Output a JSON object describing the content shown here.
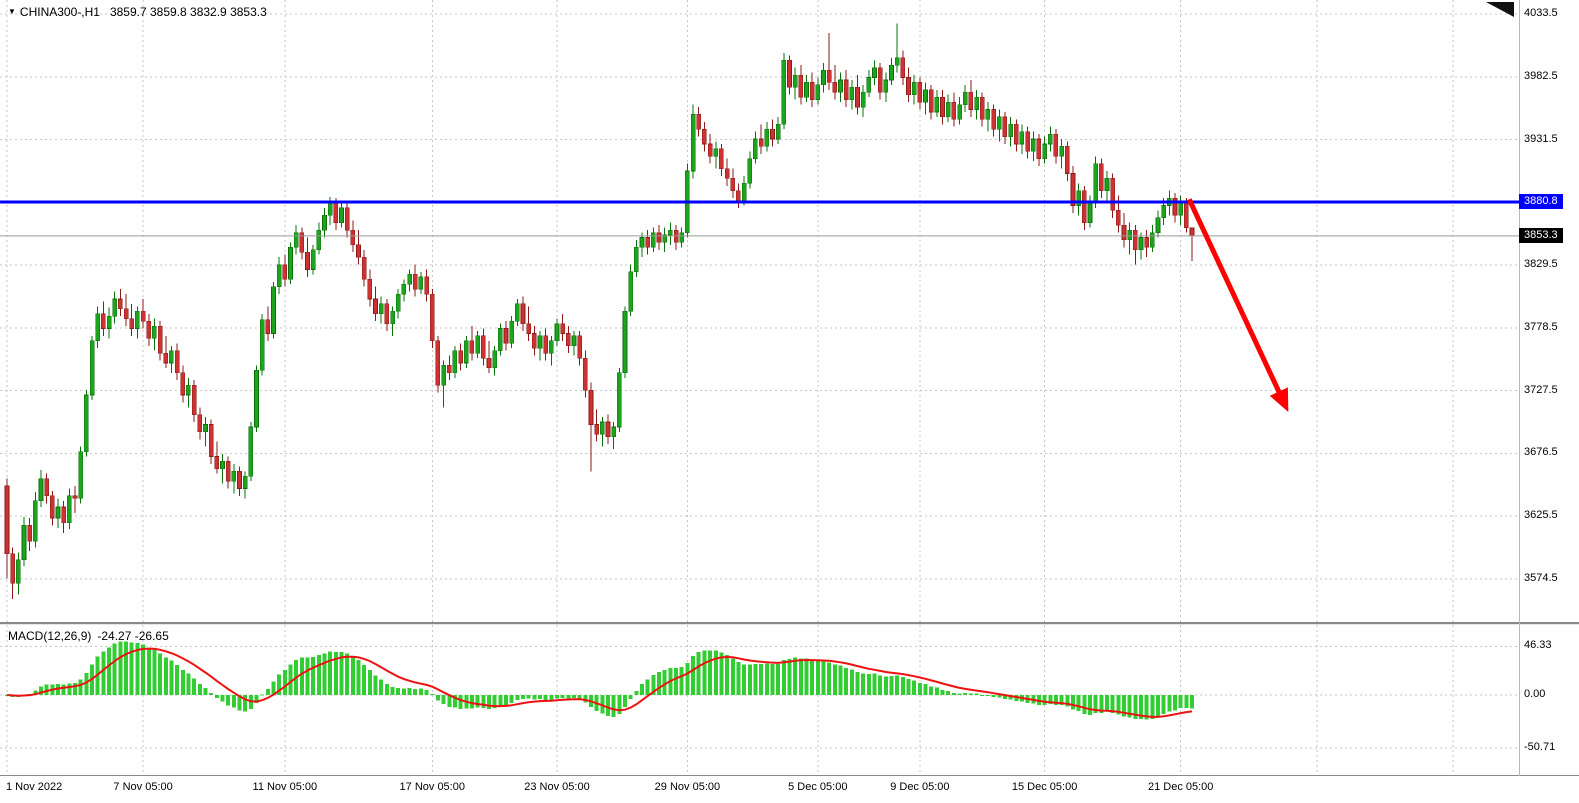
{
  "header": {
    "symbol": "CHINA300-,H1",
    "ohlc": "3859.7 3859.8 3832.9 3853.3"
  },
  "chart_data": {
    "type": "candlestick",
    "title": "CHINA300-,H1",
    "timeframe": "H1",
    "current_bar": {
      "open": 3859.7,
      "high": 3859.8,
      "low": 3832.9,
      "close": 3853.3
    },
    "price_axis": {
      "tick_labels": [
        "4033.5",
        "3982.5",
        "3931.5",
        "3829.5",
        "3778.5",
        "3727.5",
        "3676.5",
        "3625.5",
        "3574.5"
      ]
    },
    "resistance_line": {
      "price": 3880.8,
      "label": "3880.8",
      "color": "#0000FF"
    },
    "current_price_line": {
      "price": 3853.3,
      "label": "3853.3",
      "badge_bg": "#000000",
      "line_color": "#9a9a9a"
    },
    "time_axis": {
      "ticks": [
        {
          "bar": 0,
          "label": "1 Nov 2022"
        },
        {
          "bar": 24,
          "label": "7 Nov 05:00"
        },
        {
          "bar": 49,
          "label": "11 Nov 05:00"
        },
        {
          "bar": 75,
          "label": "17 Nov 05:00"
        },
        {
          "bar": 97,
          "label": "23 Nov 05:00"
        },
        {
          "bar": 120,
          "label": "29 Nov 05:00"
        },
        {
          "bar": 143,
          "label": "5 Dec 05:00"
        },
        {
          "bar": 161,
          "label": "9 Dec 05:00"
        },
        {
          "bar": 183,
          "label": "15 Dec 05:00"
        },
        {
          "bar": 207,
          "label": "21 Dec 05:00"
        }
      ],
      "unlabeled_grid_bars": [
        231,
        255
      ]
    },
    "colors": {
      "bull": "#1CA51C",
      "bull_border": "#0A700A",
      "bear": "#CC3232",
      "bear_border": "#8B1A1A",
      "grid": "#C6C6C6",
      "splitter": "#8a8a8a"
    },
    "annotation_arrow": {
      "from_bar": 208.5,
      "from_price": 3883,
      "to_bar": 225.5,
      "to_price": 3715,
      "color": "#FF0000",
      "stroke_width": 5
    },
    "indicator": {
      "name": "MACD(12,26,9)",
      "values_label": "-24.27 -26.65",
      "fast": 12,
      "slow": 26,
      "signal": 9,
      "last_macd": -24.27,
      "last_signal": -26.65,
      "axis_ticks": [
        {
          "value": 46.33,
          "label": "46.33"
        },
        {
          "value": 0,
          "label": "0.00"
        },
        {
          "value": -50.71,
          "label": "-50.71"
        }
      ],
      "histogram_color": "#32CD32",
      "signal_color": "#EE1111"
    },
    "candles": [
      [
        3650,
        3656,
        3575,
        3595
      ],
      [
        3595,
        3600,
        3558,
        3571
      ],
      [
        3571,
        3596,
        3562,
        3590
      ],
      [
        3590,
        3625,
        3585,
        3618
      ],
      [
        3618,
        3624,
        3597,
        3605
      ],
      [
        3605,
        3645,
        3600,
        3638
      ],
      [
        3638,
        3663,
        3633,
        3656
      ],
      [
        3656,
        3660,
        3636,
        3642
      ],
      [
        3642,
        3646,
        3618,
        3624
      ],
      [
        3624,
        3640,
        3616,
        3633
      ],
      [
        3633,
        3638,
        3612,
        3620
      ],
      [
        3620,
        3648,
        3615,
        3642
      ],
      [
        3642,
        3650,
        3628,
        3640
      ],
      [
        3640,
        3682,
        3636,
        3678
      ],
      [
        3678,
        3728,
        3674,
        3724
      ],
      [
        3724,
        3772,
        3720,
        3768
      ],
      [
        3768,
        3796,
        3762,
        3790
      ],
      [
        3790,
        3800,
        3772,
        3778
      ],
      [
        3778,
        3795,
        3770,
        3788
      ],
      [
        3788,
        3808,
        3782,
        3802
      ],
      [
        3802,
        3810,
        3788,
        3794
      ],
      [
        3794,
        3806,
        3780,
        3786
      ],
      [
        3786,
        3798,
        3772,
        3778
      ],
      [
        3778,
        3796,
        3770,
        3792
      ],
      [
        3792,
        3802,
        3778,
        3784
      ],
      [
        3784,
        3790,
        3764,
        3770
      ],
      [
        3770,
        3786,
        3760,
        3780
      ],
      [
        3780,
        3784,
        3752,
        3758
      ],
      [
        3758,
        3772,
        3746,
        3750
      ],
      [
        3750,
        3764,
        3742,
        3760
      ],
      [
        3760,
        3766,
        3736,
        3742
      ],
      [
        3742,
        3748,
        3718,
        3724
      ],
      [
        3724,
        3738,
        3714,
        3732
      ],
      [
        3732,
        3736,
        3702,
        3708
      ],
      [
        3708,
        3714,
        3688,
        3694
      ],
      [
        3694,
        3706,
        3682,
        3700
      ],
      [
        3700,
        3704,
        3668,
        3674
      ],
      [
        3674,
        3686,
        3660,
        3664
      ],
      [
        3664,
        3676,
        3652,
        3670
      ],
      [
        3670,
        3674,
        3648,
        3654
      ],
      [
        3654,
        3668,
        3644,
        3662
      ],
      [
        3662,
        3666,
        3642,
        3648
      ],
      [
        3648,
        3662,
        3640,
        3658
      ],
      [
        3658,
        3702,
        3654,
        3698
      ],
      [
        3698,
        3748,
        3694,
        3744
      ],
      [
        3744,
        3790,
        3740,
        3785
      ],
      [
        3785,
        3796,
        3768,
        3774
      ],
      [
        3774,
        3816,
        3770,
        3812
      ],
      [
        3812,
        3836,
        3806,
        3830
      ],
      [
        3830,
        3838,
        3812,
        3818
      ],
      [
        3818,
        3848,
        3814,
        3844
      ],
      [
        3844,
        3862,
        3838,
        3856
      ],
      [
        3856,
        3860,
        3834,
        3840
      ],
      [
        3840,
        3852,
        3820,
        3826
      ],
      [
        3826,
        3846,
        3822,
        3842
      ],
      [
        3842,
        3864,
        3838,
        3858
      ],
      [
        3858,
        3876,
        3852,
        3870
      ],
      [
        3870,
        3885,
        3862,
        3880
      ],
      [
        3880,
        3884,
        3858,
        3864
      ],
      [
        3864,
        3882,
        3860,
        3876
      ],
      [
        3876,
        3880,
        3852,
        3858
      ],
      [
        3858,
        3866,
        3840,
        3846
      ],
      [
        3846,
        3858,
        3830,
        3836
      ],
      [
        3836,
        3842,
        3812,
        3818
      ],
      [
        3818,
        3826,
        3796,
        3802
      ],
      [
        3802,
        3812,
        3784,
        3790
      ],
      [
        3790,
        3804,
        3782,
        3798
      ],
      [
        3798,
        3802,
        3776,
        3782
      ],
      [
        3782,
        3796,
        3772,
        3792
      ],
      [
        3792,
        3810,
        3786,
        3806
      ],
      [
        3806,
        3818,
        3800,
        3814
      ],
      [
        3814,
        3826,
        3808,
        3822
      ],
      [
        3822,
        3830,
        3804,
        3810
      ],
      [
        3810,
        3824,
        3806,
        3820
      ],
      [
        3820,
        3826,
        3800,
        3806
      ],
      [
        3806,
        3810,
        3762,
        3768
      ],
      [
        3768,
        3772,
        3726,
        3732
      ],
      [
        3732,
        3752,
        3714,
        3748
      ],
      [
        3748,
        3756,
        3736,
        3742
      ],
      [
        3742,
        3764,
        3738,
        3760
      ],
      [
        3760,
        3766,
        3744,
        3750
      ],
      [
        3750,
        3772,
        3746,
        3768
      ],
      [
        3768,
        3780,
        3752,
        3758
      ],
      [
        3758,
        3776,
        3754,
        3772
      ],
      [
        3772,
        3778,
        3748,
        3754
      ],
      [
        3754,
        3768,
        3742,
        3746
      ],
      [
        3746,
        3764,
        3740,
        3760
      ],
      [
        3760,
        3782,
        3756,
        3778
      ],
      [
        3778,
        3784,
        3760,
        3766
      ],
      [
        3766,
        3788,
        3762,
        3784
      ],
      [
        3784,
        3802,
        3780,
        3798
      ],
      [
        3798,
        3804,
        3776,
        3782
      ],
      [
        3782,
        3796,
        3768,
        3774
      ],
      [
        3774,
        3780,
        3756,
        3762
      ],
      [
        3762,
        3776,
        3752,
        3772
      ],
      [
        3772,
        3778,
        3752,
        3758
      ],
      [
        3758,
        3772,
        3748,
        3768
      ],
      [
        3768,
        3786,
        3764,
        3782
      ],
      [
        3782,
        3790,
        3768,
        3774
      ],
      [
        3774,
        3780,
        3758,
        3764
      ],
      [
        3764,
        3776,
        3756,
        3772
      ],
      [
        3772,
        3776,
        3748,
        3754
      ],
      [
        3754,
        3760,
        3722,
        3728
      ],
      [
        3728,
        3734,
        3662,
        3700
      ],
      [
        3700,
        3712,
        3686,
        3692
      ],
      [
        3692,
        3706,
        3682,
        3702
      ],
      [
        3702,
        3708,
        3684,
        3690
      ],
      [
        3690,
        3702,
        3680,
        3698
      ],
      [
        3698,
        3746,
        3694,
        3742
      ],
      [
        3742,
        3796,
        3738,
        3792
      ],
      [
        3792,
        3830,
        3788,
        3824
      ],
      [
        3824,
        3850,
        3820,
        3844
      ],
      [
        3844,
        3856,
        3836,
        3852
      ],
      [
        3852,
        3858,
        3838,
        3844
      ],
      [
        3844,
        3860,
        3840,
        3856
      ],
      [
        3856,
        3862,
        3842,
        3848
      ],
      [
        3848,
        3860,
        3840,
        3854
      ],
      [
        3854,
        3864,
        3846,
        3858
      ],
      [
        3858,
        3862,
        3842,
        3848
      ],
      [
        3848,
        3860,
        3844,
        3856
      ],
      [
        3856,
        3912,
        3852,
        3906
      ],
      [
        3906,
        3960,
        3900,
        3952
      ],
      [
        3952,
        3958,
        3934,
        3940
      ],
      [
        3940,
        3946,
        3922,
        3928
      ],
      [
        3928,
        3936,
        3912,
        3918
      ],
      [
        3918,
        3930,
        3908,
        3924
      ],
      [
        3924,
        3928,
        3902,
        3908
      ],
      [
        3908,
        3916,
        3894,
        3900
      ],
      [
        3900,
        3908,
        3884,
        3890
      ],
      [
        3890,
        3896,
        3876,
        3882
      ],
      [
        3882,
        3902,
        3878,
        3896
      ],
      [
        3896,
        3922,
        3892,
        3916
      ],
      [
        3916,
        3938,
        3912,
        3932
      ],
      [
        3932,
        3944,
        3920,
        3926
      ],
      [
        3926,
        3946,
        3922,
        3940
      ],
      [
        3940,
        3948,
        3926,
        3932
      ],
      [
        3932,
        3950,
        3928,
        3944
      ],
      [
        3944,
        4002,
        3940,
        3996
      ],
      [
        3996,
        4000,
        3968,
        3974
      ],
      [
        3974,
        3990,
        3964,
        3984
      ],
      [
        3984,
        3992,
        3960,
        3966
      ],
      [
        3966,
        3984,
        3962,
        3978
      ],
      [
        3978,
        3986,
        3958,
        3964
      ],
      [
        3964,
        3982,
        3960,
        3976
      ],
      [
        3976,
        3994,
        3970,
        3988
      ],
      [
        3988,
        4018,
        3972,
        3978
      ],
      [
        3978,
        3992,
        3964,
        3970
      ],
      [
        3970,
        3986,
        3962,
        3980
      ],
      [
        3980,
        3988,
        3958,
        3964
      ],
      [
        3964,
        3980,
        3956,
        3974
      ],
      [
        3974,
        3984,
        3952,
        3958
      ],
      [
        3958,
        3976,
        3950,
        3970
      ],
      [
        3970,
        3988,
        3966,
        3982
      ],
      [
        3982,
        3996,
        3976,
        3990
      ],
      [
        3990,
        3994,
        3964,
        3970
      ],
      [
        3970,
        3986,
        3962,
        3980
      ],
      [
        3980,
        3998,
        3976,
        3992
      ],
      [
        3992,
        4026,
        3986,
        3998
      ],
      [
        3998,
        4004,
        3976,
        3982
      ],
      [
        3982,
        3990,
        3962,
        3968
      ],
      [
        3968,
        3984,
        3960,
        3978
      ],
      [
        3978,
        3982,
        3956,
        3962
      ],
      [
        3962,
        3978,
        3952,
        3972
      ],
      [
        3972,
        3976,
        3948,
        3954
      ],
      [
        3954,
        3972,
        3950,
        3966
      ],
      [
        3966,
        3972,
        3944,
        3950
      ],
      [
        3950,
        3968,
        3946,
        3962
      ],
      [
        3962,
        3970,
        3942,
        3948
      ],
      [
        3948,
        3966,
        3944,
        3960
      ],
      [
        3960,
        3976,
        3954,
        3970
      ],
      [
        3970,
        3980,
        3950,
        3956
      ],
      [
        3956,
        3972,
        3948,
        3966
      ],
      [
        3966,
        3970,
        3942,
        3948
      ],
      [
        3948,
        3962,
        3938,
        3956
      ],
      [
        3956,
        3960,
        3934,
        3940
      ],
      [
        3940,
        3956,
        3930,
        3950
      ],
      [
        3950,
        3954,
        3928,
        3934
      ],
      [
        3934,
        3950,
        3926,
        3944
      ],
      [
        3944,
        3948,
        3922,
        3928
      ],
      [
        3928,
        3944,
        3920,
        3938
      ],
      [
        3938,
        3942,
        3916,
        3922
      ],
      [
        3922,
        3938,
        3914,
        3932
      ],
      [
        3932,
        3936,
        3910,
        3916
      ],
      [
        3916,
        3934,
        3912,
        3928
      ],
      [
        3928,
        3942,
        3922,
        3936
      ],
      [
        3936,
        3940,
        3912,
        3918
      ],
      [
        3918,
        3932,
        3908,
        3926
      ],
      [
        3926,
        3930,
        3898,
        3904
      ],
      [
        3904,
        3910,
        3872,
        3878
      ],
      [
        3878,
        3896,
        3870,
        3890
      ],
      [
        3890,
        3894,
        3858,
        3864
      ],
      [
        3864,
        3886,
        3860,
        3880
      ],
      [
        3880,
        3918,
        3876,
        3912
      ],
      [
        3912,
        3916,
        3884,
        3890
      ],
      [
        3890,
        3906,
        3882,
        3900
      ],
      [
        3900,
        3904,
        3868,
        3874
      ],
      [
        3874,
        3886,
        3856,
        3862
      ],
      [
        3862,
        3872,
        3844,
        3850
      ],
      [
        3850,
        3864,
        3838,
        3858
      ],
      [
        3858,
        3862,
        3830,
        3842
      ],
      [
        3842,
        3856,
        3834,
        3852
      ],
      [
        3852,
        3858,
        3836,
        3844
      ],
      [
        3844,
        3862,
        3840,
        3856
      ],
      [
        3856,
        3874,
        3852,
        3868
      ],
      [
        3868,
        3884,
        3862,
        3878
      ],
      [
        3878,
        3890,
        3870,
        3884
      ],
      [
        3884,
        3888,
        3864,
        3870
      ],
      [
        3870,
        3886,
        3862,
        3882
      ],
      [
        3882,
        3884,
        3856,
        3860
      ],
      [
        3859.7,
        3859.8,
        3832.9,
        3853.3
      ]
    ]
  }
}
